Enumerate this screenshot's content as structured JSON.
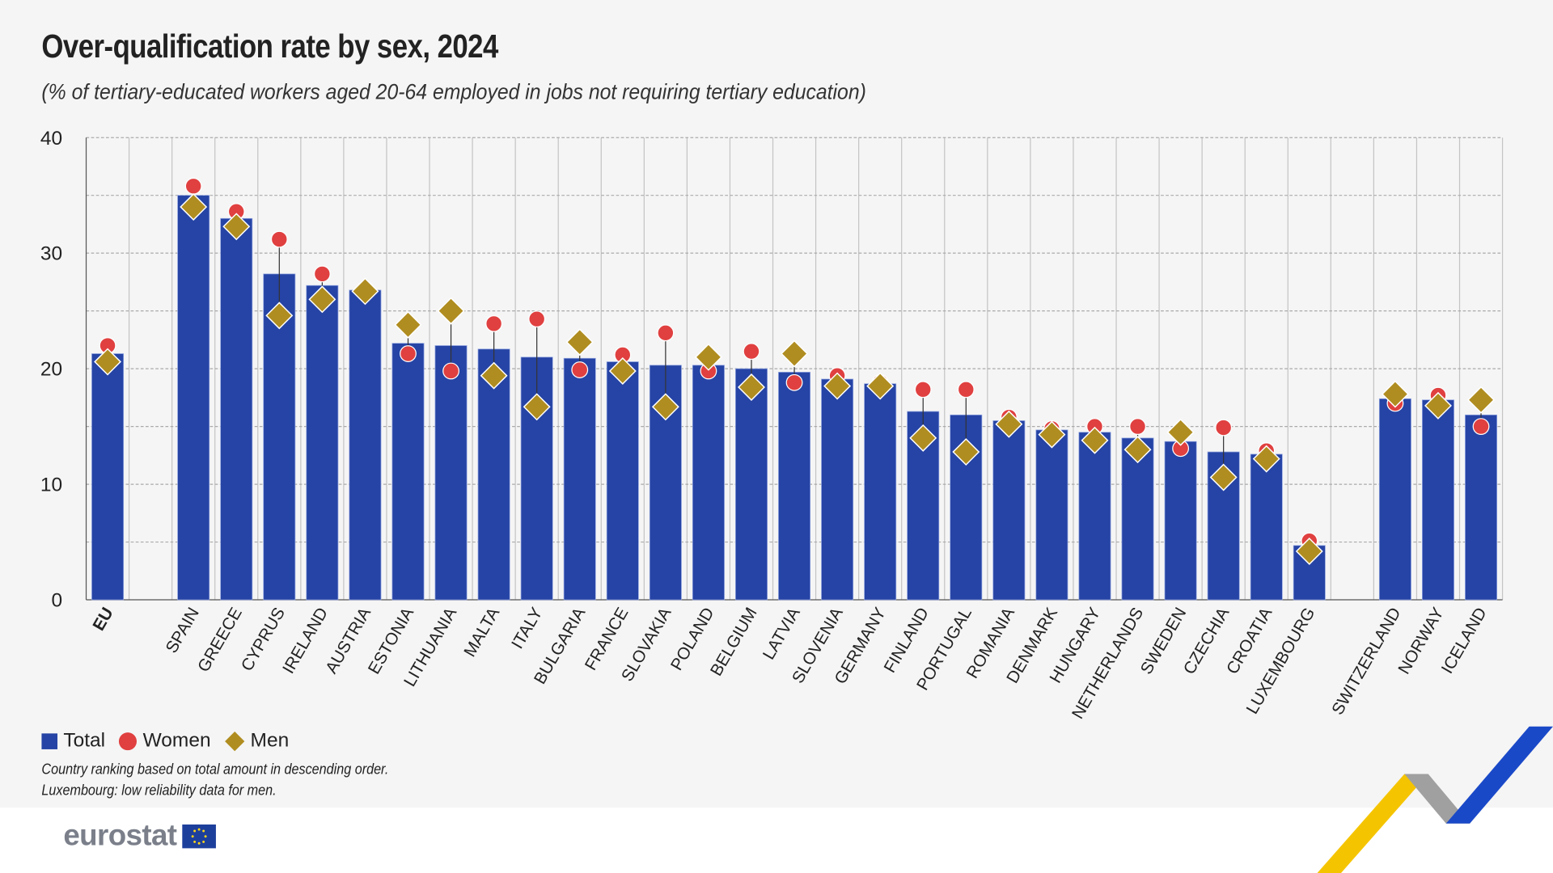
{
  "title": "Over-qualification rate by sex, 2024",
  "subtitle": "(% of tertiary-educated workers aged 20-64 employed in jobs not requiring tertiary education)",
  "chart_data": {
    "type": "bar",
    "ylim": [
      0,
      40
    ],
    "yticks": [
      0,
      10,
      20,
      30,
      40
    ],
    "grid": true,
    "legend_position": "bottom-left",
    "colors": {
      "Total": "#2644a5",
      "Women": "#e04040",
      "Men": "#b08d20"
    },
    "categories": [
      "EU",
      "SPAIN",
      "GREECE",
      "CYPRUS",
      "IRELAND",
      "AUSTRIA",
      "ESTONIA",
      "LITHUANIA",
      "MALTA",
      "ITALY",
      "BULGARIA",
      "FRANCE",
      "SLOVAKIA",
      "POLAND",
      "BELGIUM",
      "LATVIA",
      "SLOVENIA",
      "GERMANY",
      "FINLAND",
      "PORTUGAL",
      "ROMANIA",
      "DENMARK",
      "HUNGARY",
      "NETHERLANDS",
      "SWEDEN",
      "CZECHIA",
      "CROATIA",
      "LUXEMBOURG",
      "SWITZERLAND",
      "NORWAY",
      "ICELAND"
    ],
    "series": [
      {
        "name": "Total",
        "marker": "bar",
        "values": [
          21.3,
          35.0,
          33.0,
          28.2,
          27.2,
          26.8,
          22.2,
          22.0,
          21.7,
          21.0,
          20.9,
          20.6,
          20.3,
          20.3,
          20.0,
          19.7,
          19.1,
          18.7,
          16.3,
          16.0,
          15.5,
          14.7,
          14.5,
          14.0,
          13.7,
          12.8,
          12.6,
          4.7,
          17.4,
          17.3,
          16.0
        ]
      },
      {
        "name": "Women",
        "marker": "circle",
        "values": [
          22.0,
          35.8,
          33.6,
          31.2,
          28.2,
          26.9,
          21.3,
          19.8,
          23.9,
          24.3,
          19.9,
          21.2,
          23.1,
          19.8,
          21.5,
          18.8,
          19.4,
          18.8,
          18.2,
          18.2,
          15.8,
          14.8,
          15.0,
          15.0,
          13.1,
          14.9,
          12.9,
          5.1,
          17.0,
          17.7,
          15.0
        ]
      },
      {
        "name": "Men",
        "marker": "diamond",
        "values": [
          20.6,
          34.0,
          32.3,
          24.6,
          26.0,
          26.7,
          23.8,
          25.0,
          19.4,
          16.7,
          22.3,
          19.8,
          16.7,
          21.0,
          18.4,
          21.3,
          18.5,
          18.5,
          14.0,
          12.8,
          15.2,
          14.3,
          13.8,
          13.0,
          14.5,
          10.6,
          12.2,
          4.2,
          17.8,
          16.8,
          17.3
        ]
      }
    ]
  },
  "legend": {
    "total": "Total",
    "women": "Women",
    "men": "Men"
  },
  "notes": [
    "Country ranking based on total amount in descending order.",
    "Luxembourg: low reliability data for men."
  ],
  "logo": {
    "text": "eurostat"
  }
}
